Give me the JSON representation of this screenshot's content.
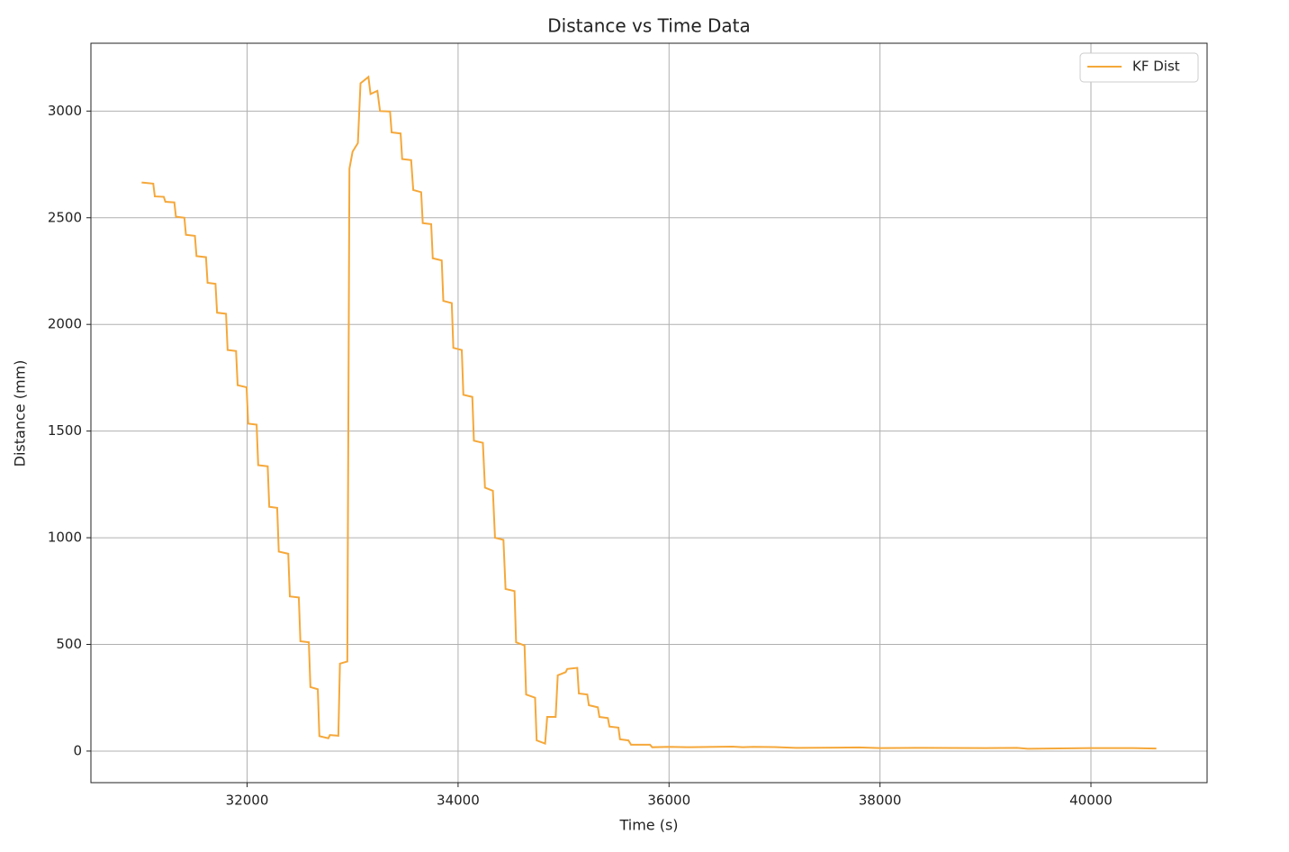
{
  "chart_data": {
    "type": "line",
    "title": "Distance vs Time Data",
    "x_label": "Time (s)",
    "y_label": "Distance (mm)",
    "x": [
      31000,
      31110,
      31125,
      31210,
      31225,
      31310,
      31325,
      31405,
      31420,
      31505,
      31520,
      31610,
      31625,
      31700,
      31715,
      31800,
      31815,
      31895,
      31910,
      31995,
      32010,
      32090,
      32105,
      32195,
      32210,
      32285,
      32300,
      32390,
      32405,
      32490,
      32505,
      32585,
      32600,
      32670,
      32685,
      32770,
      32785,
      32865,
      32880,
      32950,
      32970,
      33000,
      33050,
      33075,
      33150,
      33170,
      33235,
      33260,
      33355,
      33370,
      33455,
      33470,
      33555,
      33575,
      33650,
      33665,
      33745,
      33760,
      33845,
      33860,
      33940,
      33955,
      34035,
      34050,
      34135,
      34150,
      34235,
      34255,
      34330,
      34350,
      34430,
      34450,
      34535,
      34550,
      34630,
      34645,
      34730,
      34745,
      34825,
      34845,
      34925,
      34945,
      35020,
      35035,
      35130,
      35145,
      35225,
      35240,
      35325,
      35340,
      35420,
      35435,
      35520,
      35535,
      35615,
      35640,
      35820,
      35840,
      36000,
      36200,
      36600,
      36700,
      36800,
      37000,
      37200,
      37600,
      37800,
      38000,
      38400,
      39000,
      39300,
      39400,
      39600,
      40000,
      40400,
      40620
    ],
    "series": [
      {
        "name": "KF Dist",
        "color": "#f5a83a",
        "values": [
          2665,
          2660,
          2600,
          2598,
          2575,
          2572,
          2505,
          2500,
          2420,
          2415,
          2320,
          2315,
          2195,
          2190,
          2055,
          2050,
          1880,
          1875,
          1715,
          1705,
          1535,
          1530,
          1340,
          1335,
          1145,
          1140,
          935,
          925,
          725,
          720,
          515,
          510,
          300,
          290,
          70,
          60,
          75,
          72,
          410,
          420,
          2730,
          2810,
          2850,
          3130,
          3160,
          3080,
          3095,
          3000,
          2998,
          2900,
          2895,
          2775,
          2770,
          2630,
          2620,
          2475,
          2470,
          2310,
          2300,
          2110,
          2100,
          1890,
          1880,
          1670,
          1660,
          1455,
          1445,
          1235,
          1220,
          1000,
          990,
          760,
          750,
          510,
          495,
          265,
          250,
          50,
          35,
          160,
          160,
          355,
          370,
          385,
          390,
          270,
          265,
          215,
          205,
          160,
          155,
          115,
          110,
          55,
          50,
          30,
          30,
          18,
          20,
          18,
          21,
          18,
          20,
          19,
          15,
          16,
          17,
          14,
          15,
          14,
          15,
          11,
          12,
          14,
          14,
          12
        ]
      }
    ],
    "xlim": [
      30519,
      41101
    ],
    "xticks": [
      32000,
      34000,
      36000,
      38000,
      40000
    ],
    "ylim": [
      -148,
      3318
    ],
    "yticks": [
      0,
      500,
      1000,
      1500,
      2000,
      2500,
      3000
    ],
    "grid": true,
    "legend": "upper right"
  }
}
